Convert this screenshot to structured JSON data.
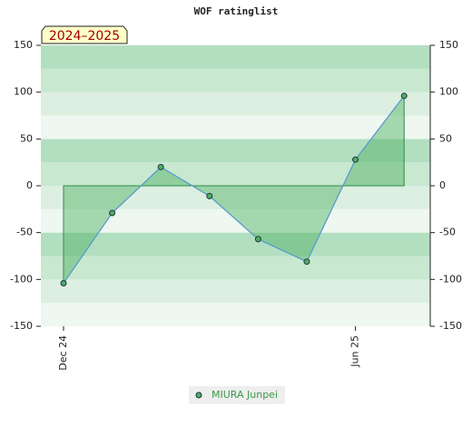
{
  "chart_data": {
    "type": "line",
    "title": "WOF ratinglist",
    "badge": "2024–2025",
    "categories": [
      "Dec 24",
      null,
      null,
      null,
      null,
      null,
      "Jun 25",
      null
    ],
    "series": [
      {
        "name": "MIURA Junpei",
        "color": "#4caf60",
        "line_color": "#5b9bd5",
        "values": [
          -104,
          -29,
          20,
          -11,
          -57,
          -81,
          28,
          96
        ]
      }
    ],
    "ylim": [
      -150,
      150
    ],
    "yticks": [
      -150,
      -100,
      -50,
      0,
      50,
      100,
      150
    ]
  }
}
